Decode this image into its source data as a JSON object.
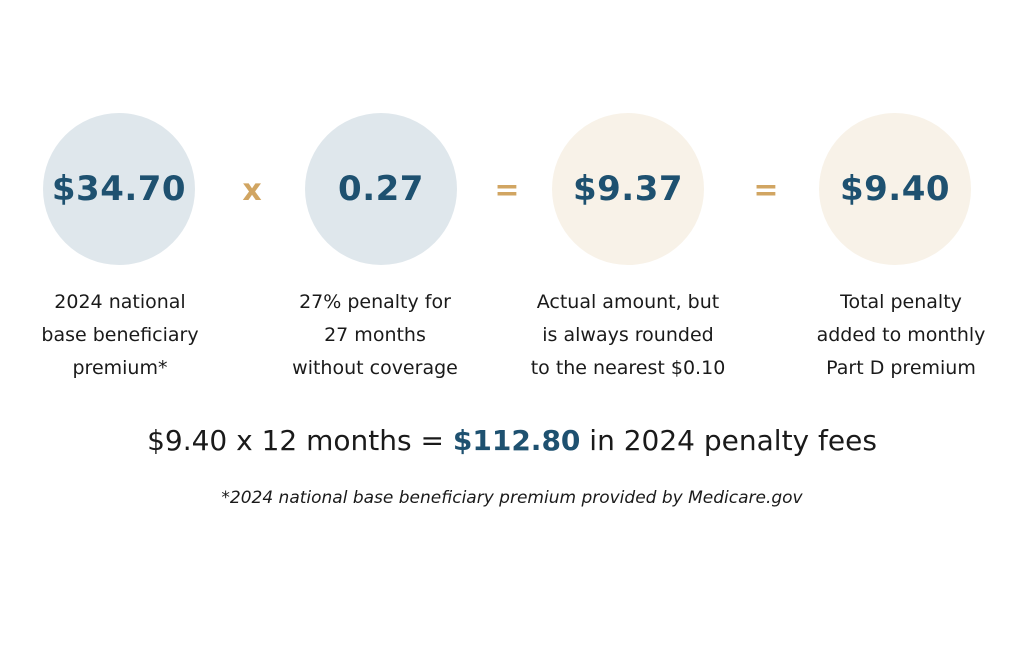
{
  "steps": [
    {
      "value": "$34.70",
      "color": "#dfe7ec",
      "caption": [
        "2024 national",
        "base beneficiary",
        "premium*"
      ]
    },
    {
      "value": "0.27",
      "color": "#dfe7ec",
      "caption": [
        "27% penalty for",
        "27 months",
        "without coverage"
      ]
    },
    {
      "value": "$9.37",
      "color": "#f8f2e8",
      "caption": [
        "Actual amount, but",
        "is always rounded",
        "to the nearest $0.10"
      ]
    },
    {
      "value": "$9.40",
      "color": "#f8f2e8",
      "caption": [
        "Total penalty",
        "added to monthly",
        "Part D premium"
      ]
    }
  ],
  "operators": [
    "x",
    "=",
    "="
  ],
  "summary": {
    "prefix": "$9.40 x 12 months = ",
    "highlight": "$112.80",
    "suffix": " in 2024 penalty fees"
  },
  "footnote": "*2024 national base beneficiary premium provided by Medicare.gov",
  "colors": {
    "value_text": "#1e5170",
    "operator": "#d1a562",
    "circle_blue": "#dfe7ec",
    "circle_cream": "#f8f2e8"
  }
}
